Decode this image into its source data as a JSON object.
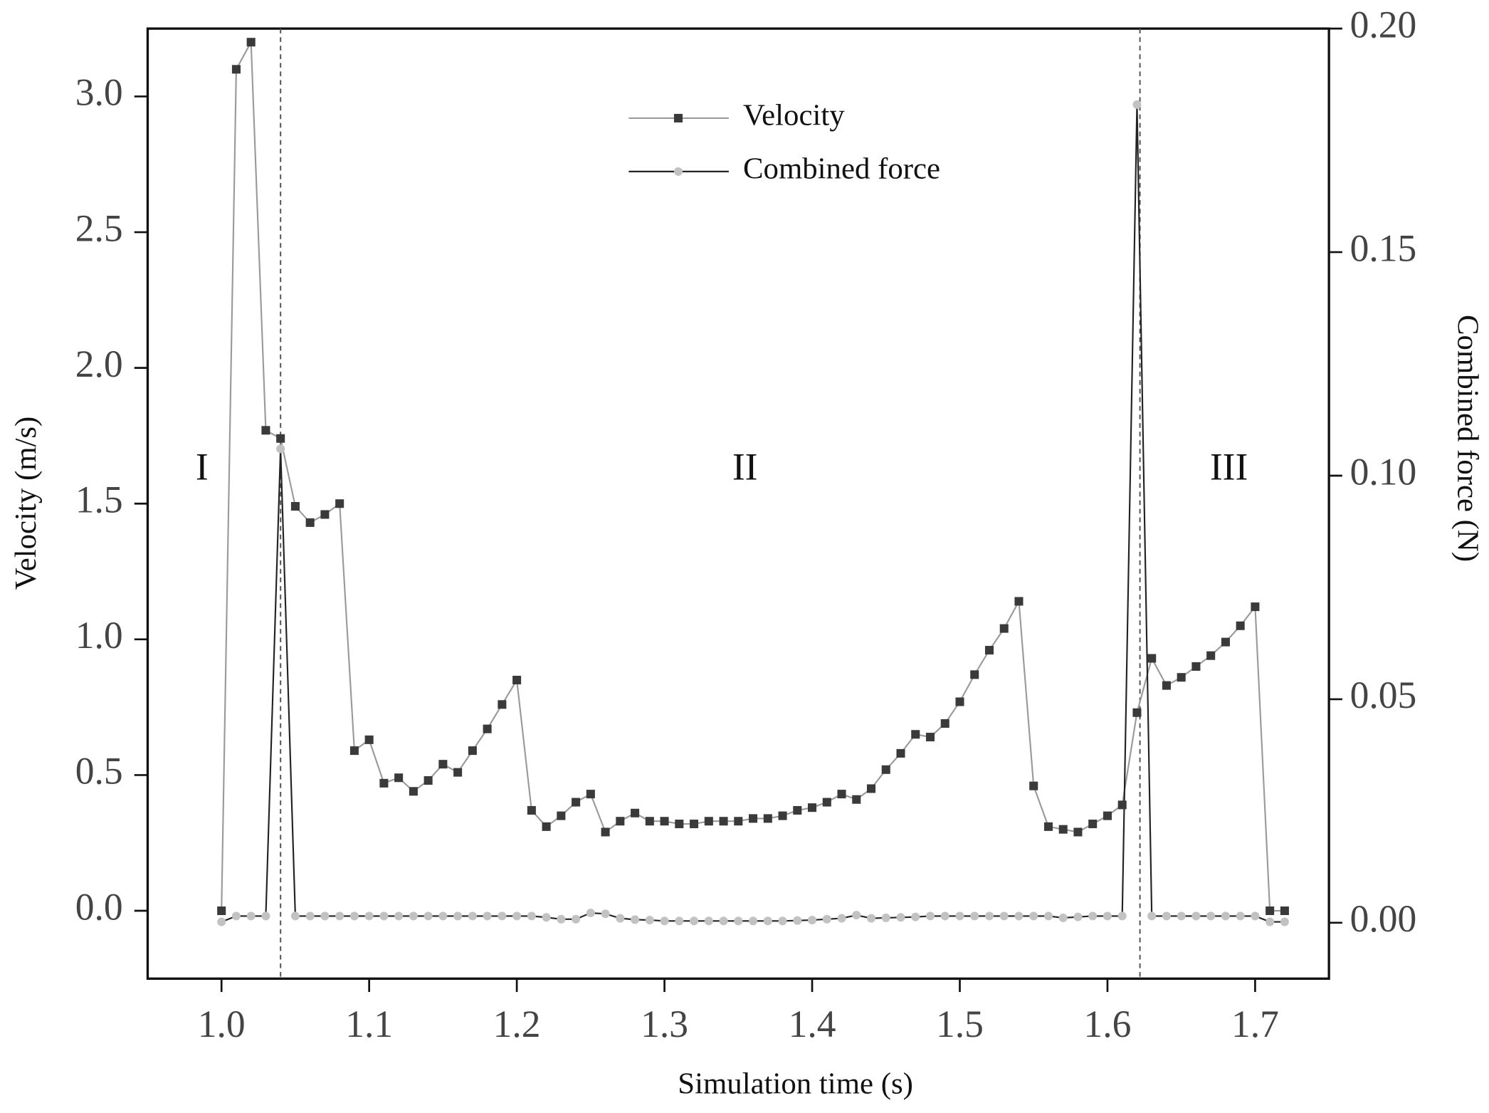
{
  "chart_data": {
    "type": "line",
    "xlabel": "Simulation time (s)",
    "ylabel": "Velocity (m/s)",
    "y2label": "Combined force (N)",
    "annotations": [
      "I",
      "II",
      "III"
    ],
    "vlines": [
      1.04,
      1.622
    ],
    "x": [
      1.0,
      1.01,
      1.02,
      1.03,
      1.04,
      1.05,
      1.06,
      1.07,
      1.08,
      1.09,
      1.1,
      1.11,
      1.12,
      1.13,
      1.14,
      1.15,
      1.16,
      1.17,
      1.18,
      1.19,
      1.2,
      1.21,
      1.22,
      1.23,
      1.24,
      1.25,
      1.26,
      1.27,
      1.28,
      1.29,
      1.3,
      1.31,
      1.32,
      1.33,
      1.34,
      1.35,
      1.36,
      1.37,
      1.38,
      1.39,
      1.4,
      1.41,
      1.42,
      1.43,
      1.44,
      1.45,
      1.46,
      1.47,
      1.48,
      1.49,
      1.5,
      1.51,
      1.52,
      1.53,
      1.54,
      1.55,
      1.56,
      1.57,
      1.58,
      1.59,
      1.6,
      1.61,
      1.62,
      1.63,
      1.64,
      1.65,
      1.66,
      1.67,
      1.68,
      1.69,
      1.7,
      1.71,
      1.72
    ],
    "series": [
      {
        "name": "Velocity",
        "color": "#3a3a3a",
        "line_color": "#9a9a9a",
        "marker": "square",
        "values": [
          0,
          3.1,
          3.2,
          1.77,
          1.74,
          1.49,
          1.43,
          1.46,
          1.5,
          0.59,
          0.63,
          0.47,
          0.49,
          0.44,
          0.48,
          0.54,
          0.51,
          0.59,
          0.67,
          0.76,
          0.85,
          0.37,
          0.31,
          0.35,
          0.4,
          0.43,
          0.29,
          0.33,
          0.36,
          0.33,
          0.33,
          0.32,
          0.32,
          0.33,
          0.33,
          0.33,
          0.34,
          0.34,
          0.35,
          0.37,
          0.38,
          0.4,
          0.43,
          0.41,
          0.45,
          0.52,
          0.58,
          0.65,
          0.64,
          0.69,
          0.77,
          0.87,
          0.96,
          1.04,
          1.14,
          0.46,
          0.31,
          0.3,
          0.29,
          0.32,
          0.35,
          0.39,
          0.73,
          0.93,
          0.83,
          0.86,
          0.9,
          0.94,
          0.99,
          1.05,
          1.12,
          0,
          0
        ]
      },
      {
        "name": "Combined force",
        "color": "#c2c2c2",
        "line_color": "#222222",
        "marker": "circle",
        "axis": "y2",
        "values": [
          0.0002,
          0.0015,
          0.0015,
          0.0015,
          0.106,
          0.0015,
          0.0015,
          0.0015,
          0.0015,
          0.0015,
          0.0015,
          0.0015,
          0.0015,
          0.0015,
          0.0015,
          0.0015,
          0.0015,
          0.0015,
          0.0015,
          0.0015,
          0.0015,
          0.0015,
          0.0012,
          0.0008,
          0.0008,
          0.0022,
          0.002,
          0.001,
          0.0007,
          0.0006,
          0.0004,
          0.0004,
          0.0004,
          0.0004,
          0.0004,
          0.0004,
          0.0004,
          0.0004,
          0.0004,
          0.0005,
          0.0006,
          0.0008,
          0.001,
          0.0017,
          0.001,
          0.0011,
          0.0012,
          0.0013,
          0.0015,
          0.0015,
          0.0015,
          0.0015,
          0.0015,
          0.0015,
          0.0015,
          0.0015,
          0.0015,
          0.0011,
          0.0013,
          0.0015,
          0.0015,
          0.0015,
          0.183,
          0.0015,
          0.0015,
          0.0015,
          0.0015,
          0.0015,
          0.0015,
          0.0015,
          0.0015,
          0.0002,
          0.0002
        ]
      }
    ],
    "xlim": [
      0.95,
      1.75
    ],
    "xticks": [
      {
        "value": 1.0,
        "label": "1.0"
      },
      1.1,
      1.2,
      1.3,
      1.4,
      1.5,
      1.6,
      1.7
    ],
    "ylim": [
      -0.25,
      3.25
    ],
    "yticks": [
      {
        "value": 0,
        "label": "0.0"
      },
      0.5,
      {
        "value": 1,
        "label": "1.0"
      },
      1.5,
      {
        "value": 2,
        "label": "2.0"
      },
      2.5,
      {
        "value": 3,
        "label": "3.0"
      }
    ],
    "y2lim": [
      -0.0125,
      0.2
    ],
    "y2ticks": [
      {
        "value": 0,
        "label": "0.00"
      },
      0.05,
      {
        "value": 0.1,
        "label": "0.10"
      },
      0.15,
      {
        "value": 0.2,
        "label": "0.20"
      }
    ],
    "grid": false,
    "legend": "top"
  }
}
